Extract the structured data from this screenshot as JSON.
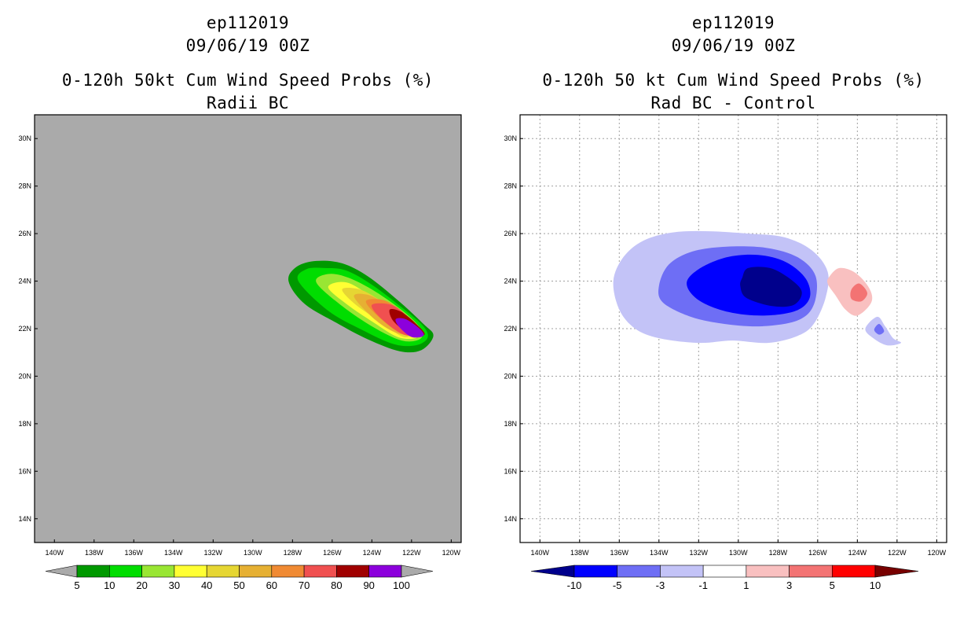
{
  "left_panel": {
    "titles": [
      "ep112019",
      "09/06/19 00Z",
      "0-120h 50kt Cum Wind Speed Probs (%)",
      "Radii BC"
    ]
  },
  "right_panel": {
    "titles": [
      "ep112019",
      "09/06/19 00Z",
      "0-120h 50 kt Cum Wind Speed Probs (%)",
      "Rad BC - Control"
    ]
  },
  "chart_data": [
    {
      "type": "heatmap",
      "title": "0-120h 50kt Cum Wind Speed Probs (%)",
      "subtitle": "Radii BC",
      "xlim": [
        -141,
        -119.5
      ],
      "ylim": [
        13,
        31
      ],
      "x_ticks": [
        -140,
        -138,
        -136,
        -134,
        -132,
        -130,
        -128,
        -126,
        -124,
        -122,
        -120
      ],
      "x_tick_labels": [
        "140W",
        "138W",
        "136W",
        "134W",
        "132W",
        "130W",
        "128W",
        "126W",
        "124W",
        "122W",
        "120W"
      ],
      "y_ticks": [
        14,
        16,
        18,
        20,
        22,
        24,
        26,
        28,
        30
      ],
      "y_tick_labels": [
        "14N",
        "16N",
        "18N",
        "20N",
        "22N",
        "24N",
        "26N",
        "28N",
        "30N"
      ],
      "grid": false,
      "background": "#aaaaaa",
      "legend": {
        "levels": [
          "5",
          "10",
          "20",
          "30",
          "40",
          "50",
          "60",
          "70",
          "80",
          "90",
          "100"
        ],
        "colors": [
          "#009900",
          "#00dd00",
          "#99e633",
          "#ffff33",
          "#e6d633",
          "#e6b033",
          "#f08a33",
          "#f05050",
          "#a00000",
          "#8c00dc"
        ],
        "arrow_colors": [
          "#aaaaaa",
          "#aaaaaa"
        ]
      },
      "contours": [
        {
          "level": 5,
          "color": "#009900",
          "points": [
            [
              -128.2,
              24.0
            ],
            [
              -127.8,
              24.6
            ],
            [
              -126.8,
              24.85
            ],
            [
              -125.5,
              24.75
            ],
            [
              -124.2,
              24.2
            ],
            [
              -122.7,
              23.2
            ],
            [
              -121.4,
              22.2
            ],
            [
              -120.9,
              21.7
            ],
            [
              -121.5,
              21.1
            ],
            [
              -122.6,
              21.05
            ],
            [
              -124.2,
              21.55
            ],
            [
              -125.8,
              22.25
            ],
            [
              -127.4,
              23.05
            ]
          ]
        },
        {
          "level": 10,
          "color": "#00dd00",
          "points": [
            [
              -127.7,
              24.0
            ],
            [
              -127.3,
              24.5
            ],
            [
              -126.4,
              24.55
            ],
            [
              -125.3,
              24.45
            ],
            [
              -124.0,
              23.85
            ],
            [
              -122.5,
              22.9
            ],
            [
              -121.4,
              22.1
            ],
            [
              -121.2,
              21.6
            ],
            [
              -121.8,
              21.3
            ],
            [
              -122.9,
              21.35
            ],
            [
              -124.5,
              21.95
            ],
            [
              -126.2,
              22.75
            ]
          ]
        },
        {
          "level": 20,
          "color": "#99e633",
          "points": [
            [
              -126.8,
              23.95
            ],
            [
              -126.2,
              24.3
            ],
            [
              -125.2,
              24.15
            ],
            [
              -123.8,
              23.55
            ],
            [
              -122.3,
              22.65
            ],
            [
              -121.5,
              21.95
            ],
            [
              -121.6,
              21.55
            ],
            [
              -122.5,
              21.5
            ],
            [
              -123.9,
              22.05
            ],
            [
              -125.5,
              22.95
            ]
          ]
        },
        {
          "level": 30,
          "color": "#ffff33",
          "points": [
            [
              -126.2,
              23.75
            ],
            [
              -125.3,
              23.95
            ],
            [
              -124.1,
              23.4
            ],
            [
              -122.6,
              22.55
            ],
            [
              -121.7,
              21.9
            ],
            [
              -121.8,
              21.6
            ],
            [
              -122.7,
              21.65
            ],
            [
              -123.9,
              22.25
            ],
            [
              -125.3,
              23.05
            ]
          ]
        },
        {
          "level": 40,
          "color": "#e6d633",
          "points": [
            [
              -125.5,
              23.65
            ],
            [
              -124.6,
              23.65
            ],
            [
              -123.5,
              23.15
            ],
            [
              -122.3,
              22.45
            ],
            [
              -121.8,
              21.9
            ],
            [
              -122.4,
              21.65
            ],
            [
              -123.5,
              22.25
            ],
            [
              -124.8,
              23.0
            ]
          ]
        },
        {
          "level": 50,
          "color": "#e6b033",
          "points": [
            [
              -124.9,
              23.35
            ],
            [
              -124.1,
              23.4
            ],
            [
              -123.1,
              22.9
            ],
            [
              -122.1,
              22.25
            ],
            [
              -121.9,
              21.85
            ],
            [
              -122.7,
              21.8
            ],
            [
              -123.8,
              22.35
            ]
          ]
        },
        {
          "level": 60,
          "color": "#f08a33",
          "points": [
            [
              -124.3,
              23.15
            ],
            [
              -123.4,
              23.2
            ],
            [
              -122.5,
              22.7
            ],
            [
              -121.9,
              22.0
            ],
            [
              -122.6,
              21.85
            ],
            [
              -123.6,
              22.45
            ]
          ]
        },
        {
          "level": 70,
          "color": "#f05050",
          "points": [
            [
              -124.0,
              23.0
            ],
            [
              -123.0,
              23.0
            ],
            [
              -122.2,
              22.5
            ],
            [
              -121.6,
              21.85
            ],
            [
              -122.4,
              21.75
            ],
            [
              -123.5,
              22.4
            ]
          ]
        },
        {
          "level": 80,
          "color": "#a00000",
          "points": [
            [
              -123.1,
              22.8
            ],
            [
              -122.5,
              22.7
            ],
            [
              -121.7,
              22.15
            ],
            [
              -121.35,
              21.75
            ],
            [
              -122.1,
              21.8
            ],
            [
              -122.9,
              22.3
            ]
          ]
        },
        {
          "level": 90,
          "color": "#8c00dc",
          "points": [
            [
              -122.8,
              22.4
            ],
            [
              -122.3,
              22.4
            ],
            [
              -121.6,
              22.0
            ],
            [
              -121.4,
              21.7
            ],
            [
              -122.0,
              21.65
            ],
            [
              -122.6,
              22.05
            ]
          ]
        }
      ]
    },
    {
      "type": "heatmap",
      "title": "0-120h 50 kt Cum Wind Speed Probs (%)",
      "subtitle": "Rad BC - Control",
      "xlim": [
        -141,
        -119.5
      ],
      "ylim": [
        13,
        31
      ],
      "x_ticks": [
        -140,
        -138,
        -136,
        -134,
        -132,
        -130,
        -128,
        -126,
        -124,
        -122,
        -120
      ],
      "x_tick_labels": [
        "140W",
        "138W",
        "136W",
        "134W",
        "132W",
        "130W",
        "128W",
        "126W",
        "124W",
        "122W",
        "120W"
      ],
      "y_ticks": [
        14,
        16,
        18,
        20,
        22,
        24,
        26,
        28,
        30
      ],
      "y_tick_labels": [
        "14N",
        "16N",
        "18N",
        "20N",
        "22N",
        "24N",
        "26N",
        "28N",
        "30N"
      ],
      "grid": true,
      "background": "#ffffff",
      "legend": {
        "levels": [
          "-10",
          "-5",
          "-3",
          "-1",
          "1",
          "3",
          "5",
          "10"
        ],
        "colors": [
          "#0000ff",
          "#6e6ef5",
          "#c3c3f7",
          "#ffffff",
          "#f9c0c0",
          "#f37373",
          "#ff0000"
        ],
        "arrow_colors": [
          "#00008c",
          "#780000"
        ]
      },
      "contours": [
        {
          "level": -1,
          "color": "#c3c3f7",
          "points": [
            [
              -136.3,
              24.0
            ],
            [
              -135.8,
              25.0
            ],
            [
              -134.8,
              25.7
            ],
            [
              -133.3,
              26.05
            ],
            [
              -131.5,
              26.1
            ],
            [
              -129.5,
              26.0
            ],
            [
              -127.7,
              25.85
            ],
            [
              -126.3,
              25.3
            ],
            [
              -125.5,
              24.4
            ],
            [
              -125.6,
              23.3
            ],
            [
              -126.2,
              22.2
            ],
            [
              -127.0,
              21.7
            ],
            [
              -128.5,
              21.4
            ],
            [
              -130.3,
              21.5
            ],
            [
              -132.0,
              21.4
            ],
            [
              -134.0,
              21.6
            ],
            [
              -135.2,
              22.0
            ],
            [
              -136.0,
              22.8
            ]
          ]
        },
        {
          "level": -3,
          "color": "#6e6ef5",
          "points": [
            [
              -134.0,
              23.8
            ],
            [
              -133.5,
              24.7
            ],
            [
              -132.3,
              25.25
            ],
            [
              -130.6,
              25.45
            ],
            [
              -128.6,
              25.4
            ],
            [
              -127.0,
              25.0
            ],
            [
              -126.1,
              24.2
            ],
            [
              -126.2,
              23.0
            ],
            [
              -127.0,
              22.35
            ],
            [
              -128.8,
              22.1
            ],
            [
              -130.7,
              22.2
            ],
            [
              -132.4,
              22.5
            ],
            [
              -133.8,
              23.1
            ]
          ]
        },
        {
          "level": -5,
          "color": "#0000ff",
          "points": [
            [
              -132.6,
              23.9
            ],
            [
              -132.0,
              24.5
            ],
            [
              -130.6,
              25.0
            ],
            [
              -129.0,
              25.1
            ],
            [
              -127.6,
              24.8
            ],
            [
              -126.6,
              24.1
            ],
            [
              -126.4,
              23.3
            ],
            [
              -127.1,
              22.75
            ],
            [
              -128.7,
              22.55
            ],
            [
              -130.5,
              22.7
            ],
            [
              -132.0,
              23.2
            ]
          ]
        },
        {
          "level": -10,
          "color": "#00008c",
          "points": [
            [
              -129.8,
              24.15
            ],
            [
              -129.5,
              24.55
            ],
            [
              -128.4,
              24.55
            ],
            [
              -127.4,
              24.1
            ],
            [
              -126.8,
              23.55
            ],
            [
              -127.2,
              23.0
            ],
            [
              -128.3,
              22.95
            ],
            [
              -129.6,
              23.3
            ],
            [
              -129.9,
              23.8
            ]
          ]
        },
        {
          "level": -1,
          "color": "#c3c3f7",
          "points": [
            [
              -123.6,
              22.0
            ],
            [
              -123.0,
              22.5
            ],
            [
              -122.6,
              22.1
            ],
            [
              -122.2,
              21.6
            ],
            [
              -121.8,
              21.4
            ],
            [
              -122.5,
              21.3
            ],
            [
              -123.2,
              21.6
            ]
          ]
        },
        {
          "level": -3,
          "color": "#6e6ef5",
          "points": [
            [
              -123.15,
              21.95
            ],
            [
              -122.9,
              22.2
            ],
            [
              -122.65,
              21.9
            ],
            [
              -122.9,
              21.75
            ]
          ]
        },
        {
          "level": 1,
          "color": "#f9c0c0",
          "points": [
            [
              -125.4,
              24.2
            ],
            [
              -124.9,
              24.55
            ],
            [
              -124.1,
              24.35
            ],
            [
              -123.4,
              23.7
            ],
            [
              -123.3,
              23.1
            ],
            [
              -124.0,
              22.55
            ],
            [
              -124.6,
              22.8
            ],
            [
              -125.1,
              23.4
            ],
            [
              -125.5,
              23.9
            ]
          ]
        },
        {
          "level": 3,
          "color": "#f37373",
          "points": [
            [
              -124.3,
              23.65
            ],
            [
              -123.9,
              23.9
            ],
            [
              -123.5,
              23.5
            ],
            [
              -123.8,
              23.15
            ],
            [
              -124.3,
              23.25
            ]
          ]
        }
      ]
    }
  ]
}
